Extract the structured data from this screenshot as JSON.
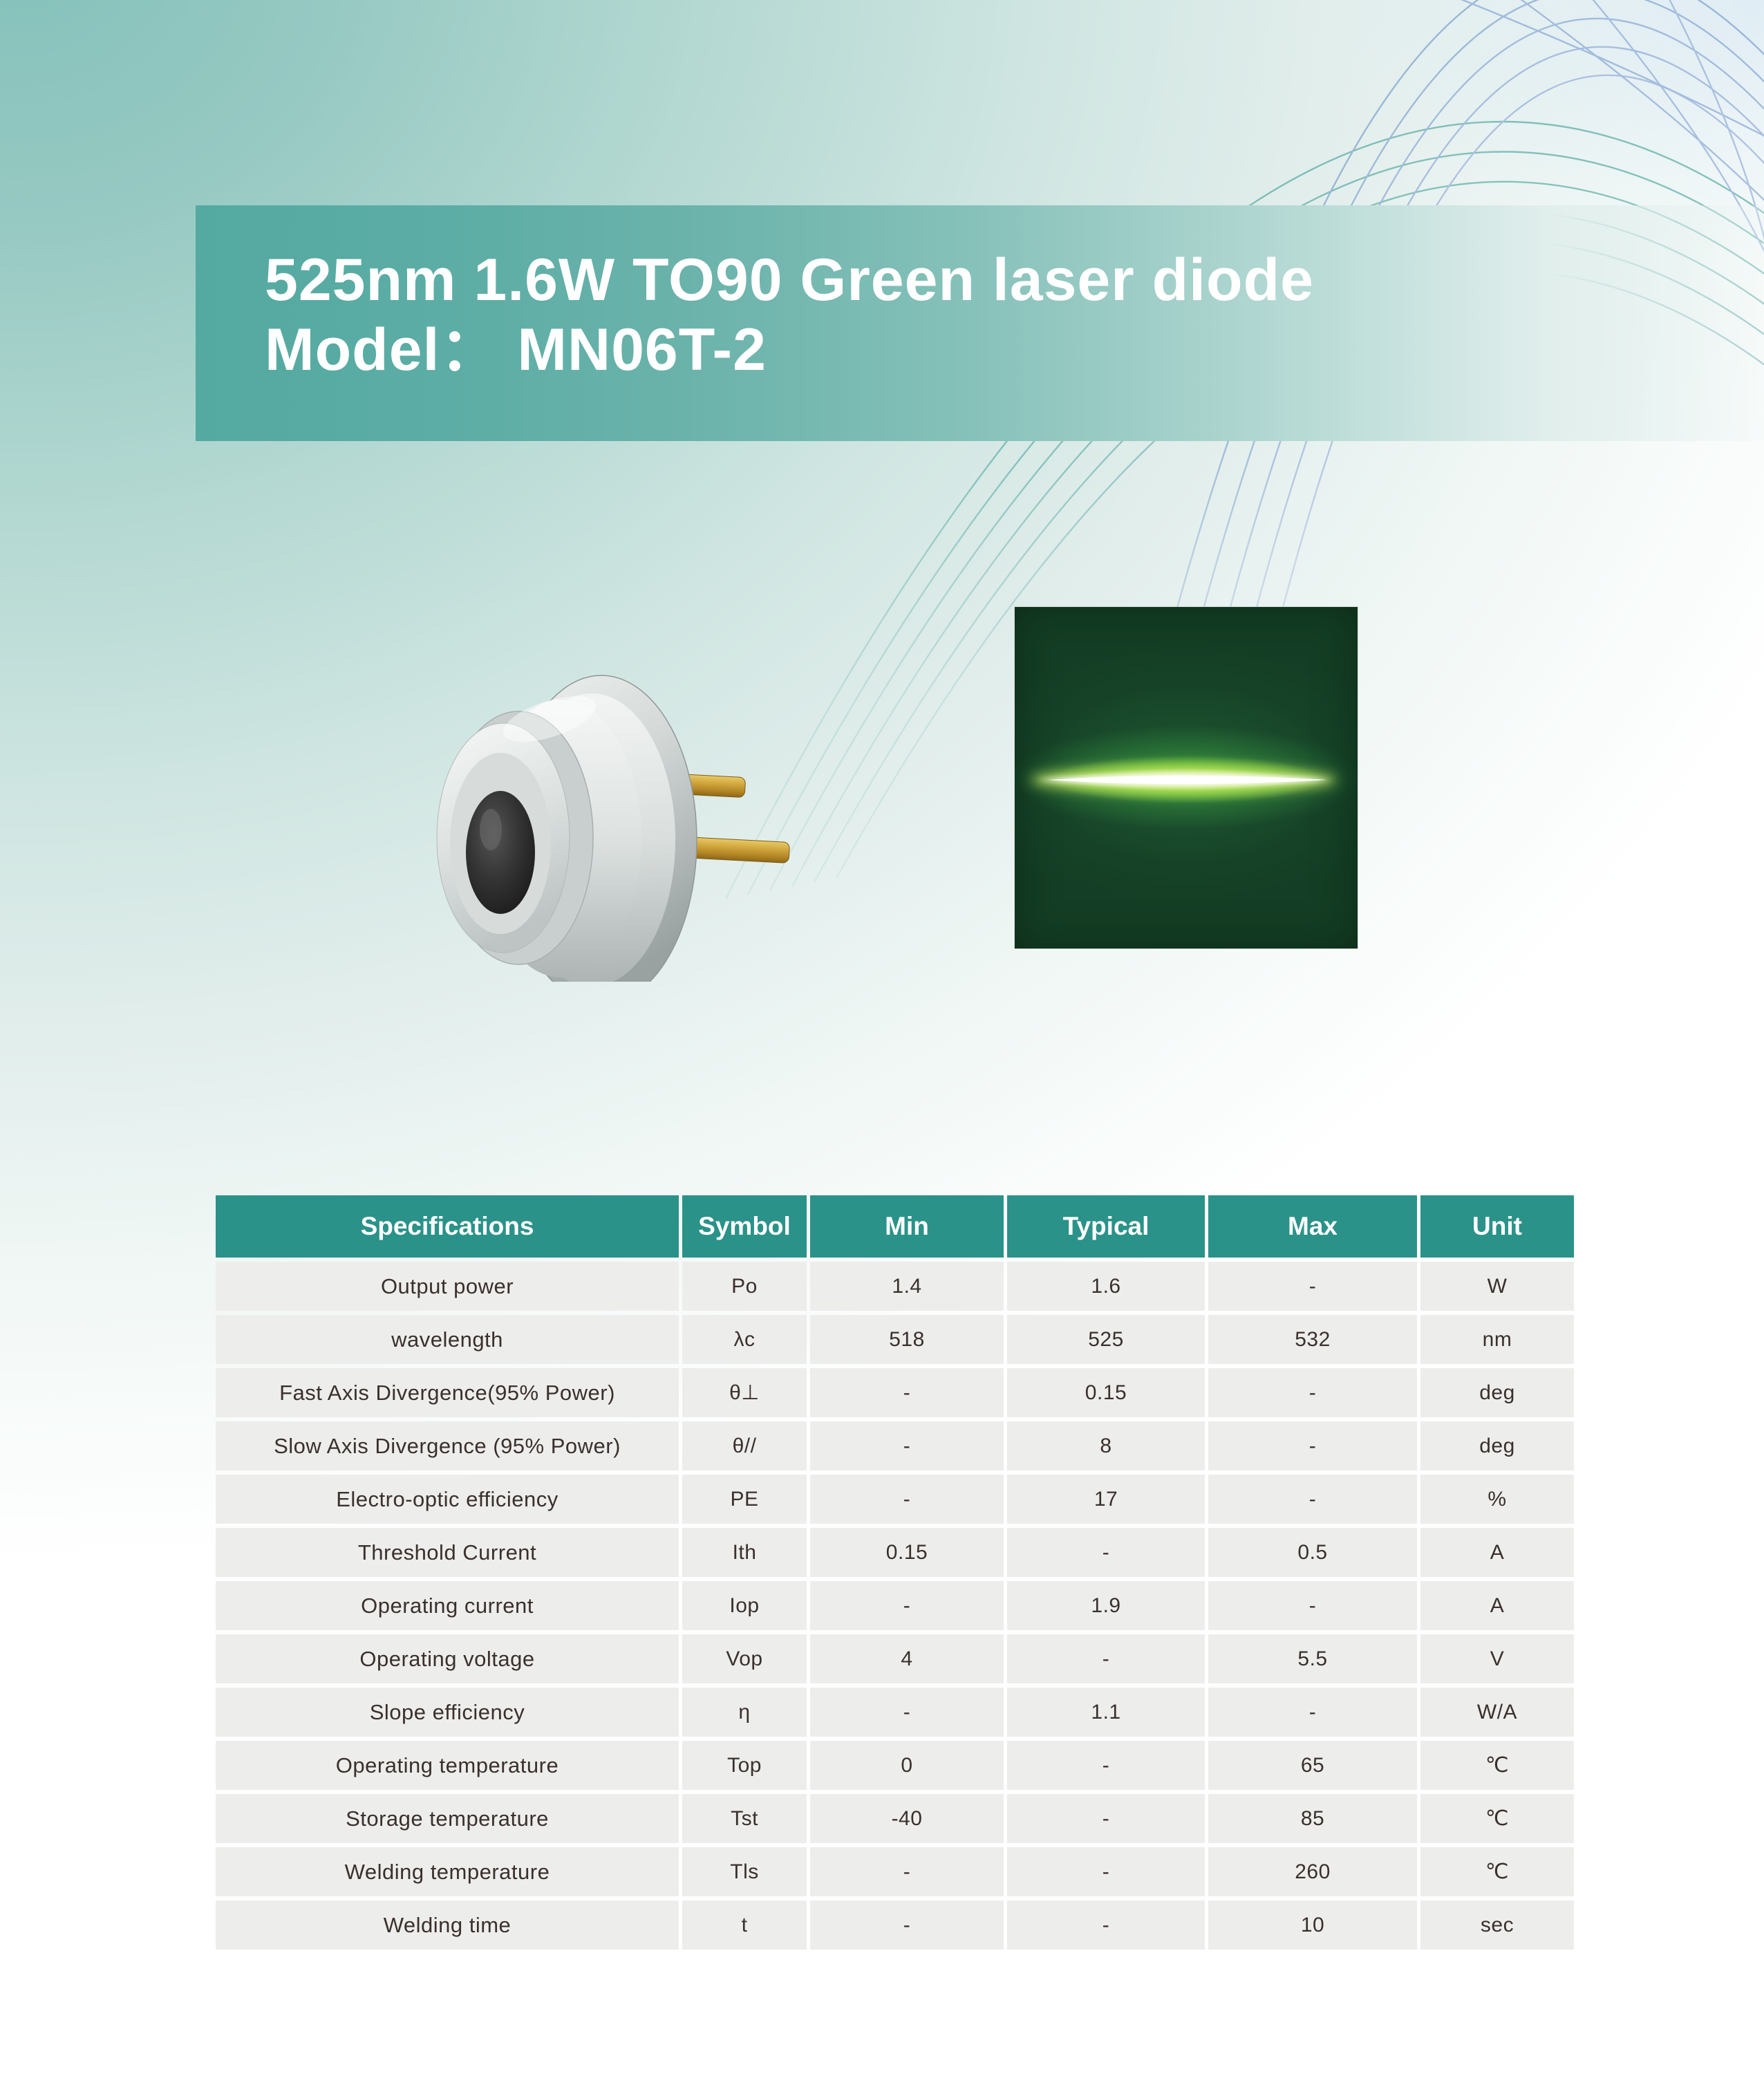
{
  "banner": {
    "title_line1": "525nm 1.6W TO90 Green laser diode",
    "title_line2": "Model：  MN06T-2"
  },
  "images": {
    "diode_photo": "TO90 metal-can laser diode package with two gold pins",
    "beam_photo": "green laser beam horizontal stripe profile"
  },
  "colors": {
    "banner_teal": "#54a9a1",
    "table_header_teal": "#2a9289",
    "table_row_gray": "#ededec",
    "cell_text": "#3a302c",
    "swirl_teal": "#2f978e",
    "swirl_blue": "#6e90cc",
    "beam_green": "#6ec43a",
    "beam_background": "#143e25"
  },
  "table": {
    "headers": [
      "Specifications",
      "Symbol",
      "Min",
      "Typical",
      "Max",
      "Unit"
    ],
    "rows": [
      [
        "Output power",
        "Po",
        "1.4",
        "1.6",
        "-",
        "W"
      ],
      [
        "wavelength",
        "λc",
        "518",
        "525",
        "532",
        "nm"
      ],
      [
        "Fast Axis Divergence(95% Power)",
        "θ⊥",
        "-",
        "0.15",
        "-",
        "deg"
      ],
      [
        "Slow Axis Divergence (95% Power)",
        "θ//",
        "-",
        "8",
        "-",
        "deg"
      ],
      [
        "Electro-optic efficiency",
        "PE",
        "-",
        "17",
        "-",
        "%"
      ],
      [
        "Threshold Current",
        "Ith",
        "0.15",
        "-",
        "0.5",
        "A"
      ],
      [
        "Operating current",
        "Iop",
        "-",
        "1.9",
        "-",
        "A"
      ],
      [
        "Operating voltage",
        "Vop",
        "4",
        "-",
        "5.5",
        "V"
      ],
      [
        "Slope efficiency",
        "η",
        "-",
        "1.1",
        "-",
        "W/A"
      ],
      [
        "Operating temperature",
        "Top",
        "0",
        "-",
        "65",
        "℃"
      ],
      [
        "Storage temperature",
        "Tst",
        "-40",
        "-",
        "85",
        "℃"
      ],
      [
        "Welding temperature",
        "Tls",
        "-",
        "-",
        "260",
        "℃"
      ],
      [
        "Welding time",
        "t",
        "-",
        "-",
        "10",
        "sec"
      ]
    ]
  }
}
